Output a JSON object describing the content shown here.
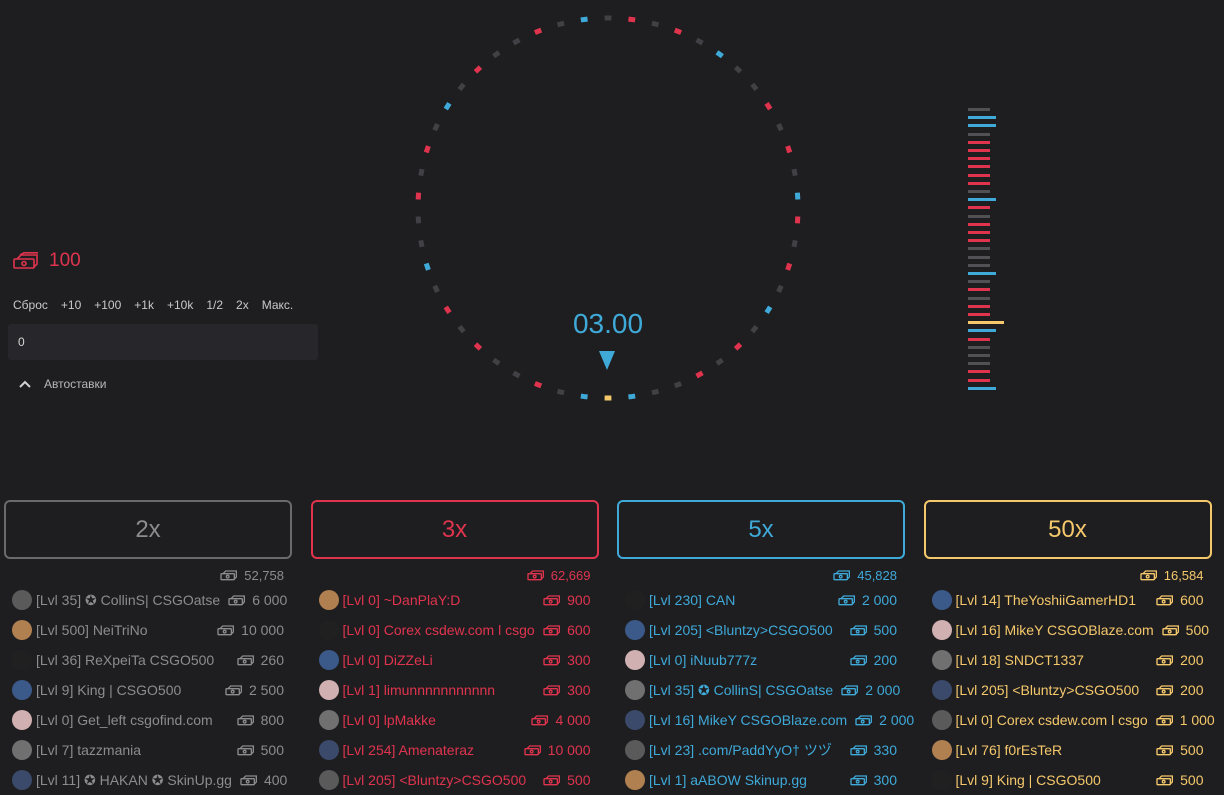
{
  "colors": {
    "gray": "#8c8c8c",
    "red": "#e0344e",
    "blue": "#3fa9d8",
    "gold": "#f5c86b",
    "bg": "#1e1e21"
  },
  "icons": {
    "currency": "cash-stack-icon",
    "chevron": "chevron-up-icon",
    "pointer": "triangle-down-icon"
  },
  "balance": "100",
  "quick_bets": [
    "Сброс",
    "+10",
    "+100",
    "+1k",
    "+10k",
    "1/2",
    "2x",
    "Макс."
  ],
  "bet_input": {
    "value": "0"
  },
  "autobet_label": "Автоставки",
  "timer": "03.00",
  "wheel_segments": [
    "gold",
    "blue",
    "gray",
    "gray",
    "red",
    "gray",
    "red",
    "gray",
    "blue",
    "gray",
    "red",
    "gray",
    "red",
    "blue",
    "gray",
    "red",
    "gray",
    "red",
    "gray",
    "gray",
    "blue",
    "gray",
    "red",
    "gray",
    "red",
    "gray",
    "blue",
    "gray",
    "red",
    "gray",
    "gray",
    "red",
    "gray",
    "blue",
    "gray",
    "red",
    "gray",
    "red",
    "gray",
    "gray",
    "blue",
    "gray",
    "red",
    "gray",
    "red",
    "gray",
    "gray",
    "red",
    "gray",
    "blue"
  ],
  "history": [
    "gray",
    "blue",
    "blue",
    "gray",
    "red",
    "red",
    "red",
    "red",
    "red",
    "red",
    "gray",
    "blue",
    "red",
    "gray",
    "red",
    "red",
    "red",
    "gray",
    "gray",
    "gray",
    "blue",
    "gray",
    "red",
    "gray",
    "red",
    "red",
    "gold",
    "blue",
    "red",
    "gray",
    "gray",
    "gray",
    "red",
    "red",
    "blue"
  ],
  "columns": [
    {
      "label": "2x",
      "color": "gray",
      "total": "52,758",
      "players": [
        {
          "name": "[Lvl 35] ✪ CollinS| CSGOatse",
          "amount": "6 000"
        },
        {
          "name": "[Lvl 500] NeiTriNo",
          "amount": "10 000"
        },
        {
          "name": "[Lvl 36] ReXpeiTa CSGO500",
          "amount": "260"
        },
        {
          "name": "[Lvl 9] King | CSGO500",
          "amount": "2 500"
        },
        {
          "name": "[Lvl 0] Get_left csgofind.com",
          "amount": "800"
        },
        {
          "name": "[Lvl 7] tazzmania",
          "amount": "500"
        },
        {
          "name": "[Lvl 11] ✪ HAKAN ✪ SkinUp.gg",
          "amount": "400"
        }
      ]
    },
    {
      "label": "3x",
      "color": "red",
      "total": "62,669",
      "players": [
        {
          "name": "[Lvl 0] ~DanPlaY:D",
          "amount": "900"
        },
        {
          "name": "[Lvl 0] Corex csdew.com l csgo",
          "amount": "600"
        },
        {
          "name": "[Lvl 0] DiZZeLi",
          "amount": "300"
        },
        {
          "name": "[Lvl 1] limunnnnnnnnnnn",
          "amount": "300"
        },
        {
          "name": "[Lvl 0] lpMakke",
          "amount": "4 000"
        },
        {
          "name": "[Lvl 254] Amenateraz",
          "amount": "10 000"
        },
        {
          "name": "[Lvl 205] <Bluntzy>CSGO500",
          "amount": "500"
        }
      ]
    },
    {
      "label": "5x",
      "color": "blue",
      "total": "45,828",
      "players": [
        {
          "name": "[Lvl 230] CAN",
          "amount": "2 000"
        },
        {
          "name": "[Lvl 205] <Bluntzy>CSGO500",
          "amount": "500"
        },
        {
          "name": "[Lvl 0] iNuub777z",
          "amount": "200"
        },
        {
          "name": "[Lvl 35] ✪ CollinS| CSGOatse",
          "amount": "2 000"
        },
        {
          "name": "[Lvl 16] MikeY CSGOBlaze.com",
          "amount": "2 000"
        },
        {
          "name": "[Lvl 23] .com/PaddYyO† ツヅ",
          "amount": "330"
        },
        {
          "name": "[Lvl 1] aABOW Skinup.gg",
          "amount": "300"
        }
      ]
    },
    {
      "label": "50x",
      "color": "gold",
      "total": "16,584",
      "players": [
        {
          "name": "[Lvl 14] TheYoshiiGamerHD1",
          "amount": "600"
        },
        {
          "name": "[Lvl 16] MikeY CSGOBlaze.com",
          "amount": "500"
        },
        {
          "name": "[Lvl 18] SNDCT1337",
          "amount": "200"
        },
        {
          "name": "[Lvl 205] <Bluntzy>CSGO500",
          "amount": "200"
        },
        {
          "name": "[Lvl 0] Corex csdew.com l csgo",
          "amount": "1 000"
        },
        {
          "name": "[Lvl 76] f0rEsTeR",
          "amount": "500"
        },
        {
          "name": "[Lvl 9] King | CSGO500",
          "amount": "500"
        }
      ]
    }
  ]
}
